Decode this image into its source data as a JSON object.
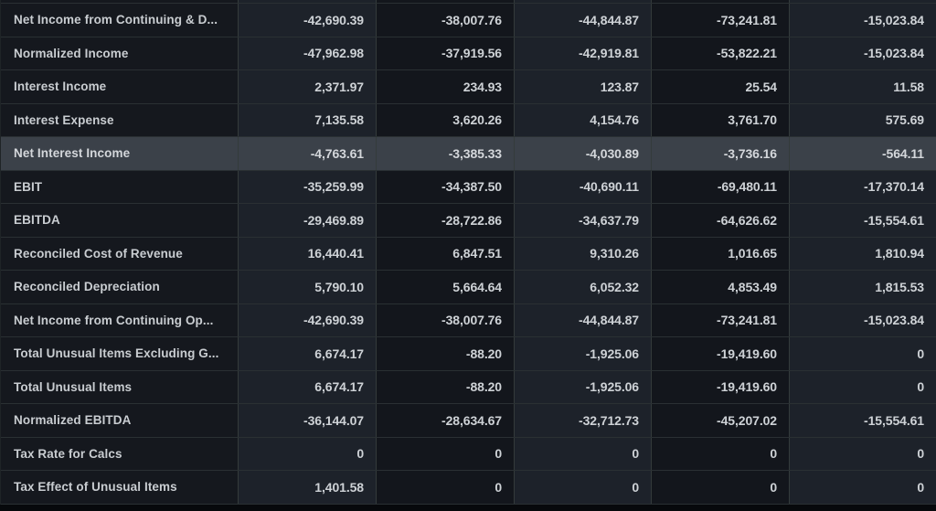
{
  "table": {
    "rows": [
      {
        "label": "Net Income from Continuing & D...",
        "highlighted": false,
        "values": [
          "-42,690.39",
          "-38,007.76",
          "-44,844.87",
          "-73,241.81",
          "-15,023.84"
        ]
      },
      {
        "label": "Normalized Income",
        "highlighted": false,
        "values": [
          "-47,962.98",
          "-37,919.56",
          "-42,919.81",
          "-53,822.21",
          "-15,023.84"
        ]
      },
      {
        "label": "Interest Income",
        "highlighted": false,
        "values": [
          "2,371.97",
          "234.93",
          "123.87",
          "25.54",
          "11.58"
        ]
      },
      {
        "label": "Interest Expense",
        "highlighted": false,
        "values": [
          "7,135.58",
          "3,620.26",
          "4,154.76",
          "3,761.70",
          "575.69"
        ]
      },
      {
        "label": "Net Interest Income",
        "highlighted": true,
        "values": [
          "-4,763.61",
          "-3,385.33",
          "-4,030.89",
          "-3,736.16",
          "-564.11"
        ]
      },
      {
        "label": "EBIT",
        "highlighted": false,
        "values": [
          "-35,259.99",
          "-34,387.50",
          "-40,690.11",
          "-69,480.11",
          "-17,370.14"
        ]
      },
      {
        "label": "EBITDA",
        "highlighted": false,
        "values": [
          "-29,469.89",
          "-28,722.86",
          "-34,637.79",
          "-64,626.62",
          "-15,554.61"
        ]
      },
      {
        "label": "Reconciled Cost of Revenue",
        "highlighted": false,
        "values": [
          "16,440.41",
          "6,847.51",
          "9,310.26",
          "1,016.65",
          "1,810.94"
        ]
      },
      {
        "label": "Reconciled Depreciation",
        "highlighted": false,
        "values": [
          "5,790.10",
          "5,664.64",
          "6,052.32",
          "4,853.49",
          "1,815.53"
        ]
      },
      {
        "label": "Net Income from Continuing Op...",
        "highlighted": false,
        "values": [
          "-42,690.39",
          "-38,007.76",
          "-44,844.87",
          "-73,241.81",
          "-15,023.84"
        ]
      },
      {
        "label": "Total Unusual Items Excluding G...",
        "highlighted": false,
        "values": [
          "6,674.17",
          "-88.20",
          "-1,925.06",
          "-19,419.60",
          "0"
        ]
      },
      {
        "label": "Total Unusual Items",
        "highlighted": false,
        "values": [
          "6,674.17",
          "-88.20",
          "-1,925.06",
          "-19,419.60",
          "0"
        ]
      },
      {
        "label": "Normalized EBITDA",
        "highlighted": false,
        "values": [
          "-36,144.07",
          "-28,634.67",
          "-32,712.73",
          "-45,207.02",
          "-15,554.61"
        ]
      },
      {
        "label": "Tax Rate for Calcs",
        "highlighted": false,
        "values": [
          "0",
          "0",
          "0",
          "0",
          "0"
        ]
      },
      {
        "label": "Tax Effect of Unusual Items",
        "highlighted": false,
        "values": [
          "1,401.58",
          "0",
          "0",
          "0",
          "0"
        ]
      }
    ]
  },
  "colors": {
    "page-bg": "#07090c",
    "label-col-bg": "#15181e",
    "col-odd-bg": "#1d222a",
    "col-even-bg": "#13161c",
    "row-highlight-bg": "#3b4149",
    "border-v": "#343b3b",
    "border-h": "#2a3033",
    "label-text": "#c9cdd1",
    "value-text": "#ced2d6"
  }
}
